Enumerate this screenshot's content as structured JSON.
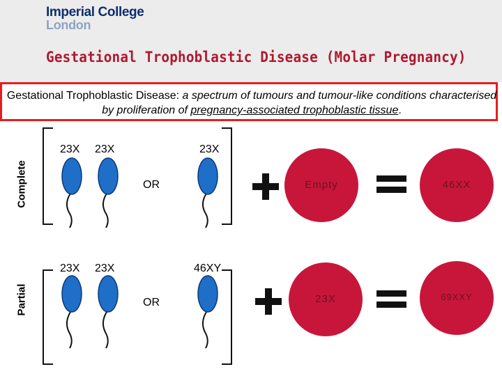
{
  "header": {
    "logo_line1": "Imperial College",
    "logo_line2": "London",
    "title": "Gestational Trophoblastic Disease (Molar Pregnancy)"
  },
  "definition": {
    "term": "Gestational Trophoblastic Disease",
    "separator": ": ",
    "text_italic": "a spectrum of tumours and tumour-like conditions characterised by proliferation of ",
    "text_underlined": "pregnancy-associated trophoblastic tissue",
    "end": "."
  },
  "rows": {
    "complete": {
      "label": "Complete",
      "sperm_labels": [
        "23X",
        "23X",
        "23X"
      ],
      "or": "OR",
      "egg": "Empty",
      "result": "46XX"
    },
    "partial": {
      "label": "Partial",
      "sperm_labels": [
        "23X",
        "23X",
        "46XY"
      ],
      "or": "OR",
      "egg": "23X",
      "result": "69XXY"
    }
  },
  "colors": {
    "title_red": "#b0192f",
    "border_red": "#e41e1e",
    "sperm_blue": "#1f6fc9",
    "egg_red": "#c8163a",
    "logo_navy": "#0e2f6f",
    "header_grey": "#ececec"
  }
}
